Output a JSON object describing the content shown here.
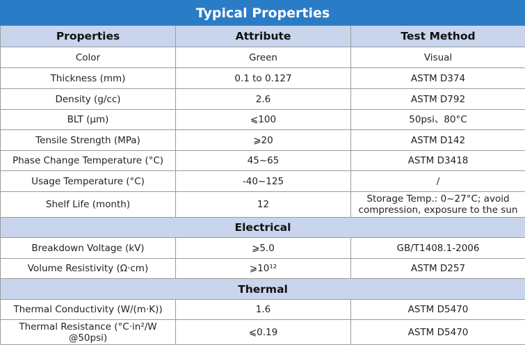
{
  "title": "Typical Properties",
  "header": [
    "Properties",
    "Attribute",
    "Test Method"
  ],
  "sections": [
    {
      "rows": [
        [
          "Color",
          "Green",
          "Visual"
        ],
        [
          "Thickness (mm)",
          "0.1 to 0.127",
          "ASTM D374"
        ],
        [
          "Density (g/cc)",
          "2.6",
          "ASTM D792"
        ],
        [
          "BLT (μm)",
          "⩽100",
          "50psi、80°C"
        ],
        [
          "Tensile Strength (MPa)",
          "⩾20",
          "ASTM D142"
        ],
        [
          "Phase Change Temperature (°C)",
          "45~65",
          "ASTM D3418"
        ],
        [
          "Usage Temperature (°C)",
          "-40~125",
          "/"
        ],
        [
          "Shelf Life (month)",
          "12",
          "Storage Temp.: 0~27°C; avoid compression, exposure to the sun"
        ]
      ]
    },
    {
      "title": "Electrical",
      "rows": [
        [
          "Breakdown Voltage (kV)",
          "⩾5.0",
          "GB/T1408.1-2006"
        ],
        [
          "Volume Resistivity (Ω·cm)",
          "⩾10¹²",
          "ASTM D257"
        ]
      ]
    },
    {
      "title": "Thermal",
      "rows": [
        [
          "Thermal Conductivity (W/(m·K))",
          "1.6",
          "ASTM D5470"
        ],
        [
          "Thermal Resistance (°C·in²/W @50psi)",
          "⩽0.19",
          "ASTM D5470"
        ]
      ]
    }
  ]
}
